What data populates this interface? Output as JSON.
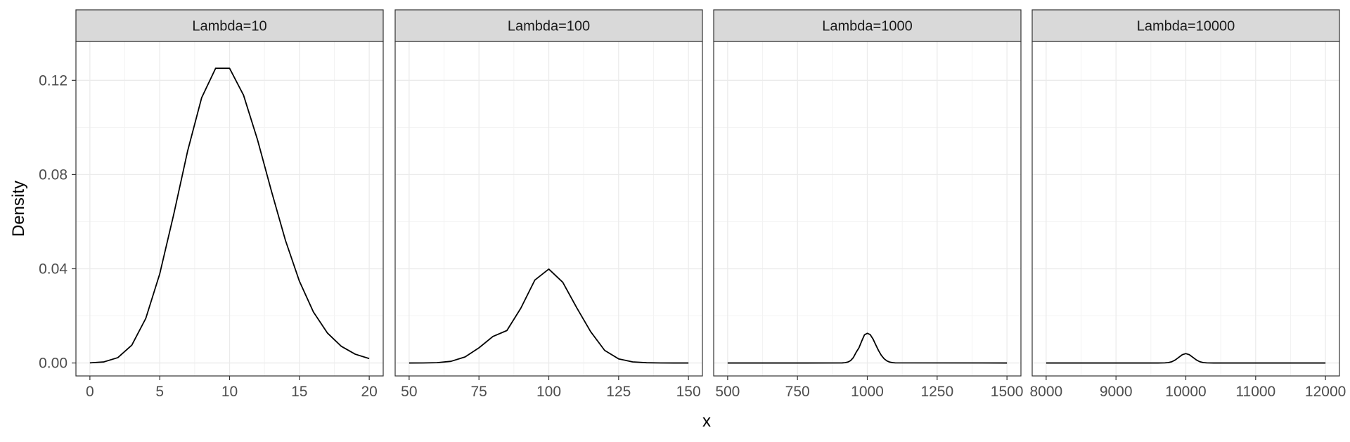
{
  "chart_data": {
    "type": "line",
    "title": "",
    "xlabel": "x",
    "ylabel": "Density",
    "ylim": [
      -0.0055,
      0.1365
    ],
    "y_ticks": [
      0.0,
      0.04,
      0.08,
      0.12
    ],
    "y_tick_labels": [
      "0.00",
      "0.04",
      "0.08",
      "0.12"
    ],
    "grid": true,
    "shared_y": true,
    "panels": [
      {
        "strip": "Lambda=10",
        "lambda": 10,
        "xlim": [
          -1,
          21
        ],
        "x_ticks": [
          0,
          5,
          10,
          15,
          20
        ],
        "x_tick_labels": [
          "0",
          "5",
          "10",
          "15",
          "20"
        ],
        "series": [
          {
            "x": [
              0,
              1,
              2,
              3,
              4,
              5,
              6,
              7,
              8,
              9,
              10,
              11,
              12,
              13,
              14,
              15,
              16,
              17,
              18,
              19,
              20
            ],
            "y": [
              4.54e-05,
              0.000454,
              0.00227,
              0.00757,
              0.01892,
              0.03783,
              0.06306,
              0.09008,
              0.1126,
              0.1251,
              0.1251,
              0.1137,
              0.09478,
              0.07291,
              0.05208,
              0.03472,
              0.0217,
              0.01276,
              0.00709,
              0.00373,
              0.00187
            ]
          }
        ]
      },
      {
        "strip": "Lambda=100",
        "lambda": 100,
        "xlim": [
          45,
          155
        ],
        "x_ticks": [
          50,
          75,
          100,
          125,
          150
        ],
        "x_tick_labels": [
          "50",
          "75",
          "100",
          "125",
          "150"
        ],
        "series": [
          {
            "x": [
              50,
              55,
              60,
              65,
              70,
              75,
              80,
              85,
              90,
              95,
              100,
              105,
              110,
              115,
              120,
              125,
              130,
              135,
              140,
              145,
              150
            ],
            "y": [
              1.6e-06,
              1.79e-05,
              0.0001362,
              0.0007114,
              0.002567,
              0.00643,
              0.01126,
              0.01378,
              0.02329,
              0.03519,
              0.03986,
              0.03427,
              0.02347,
              0.01327,
              0.00535,
              0.00175,
              0.000476,
              0.000117,
              2.53e-05,
              4.7e-06,
              8e-07
            ]
          }
        ]
      },
      {
        "strip": "Lambda=1000",
        "lambda": 1000,
        "xlim": [
          450,
          1550
        ],
        "x_ticks": [
          500,
          750,
          1000,
          1250,
          1500
        ],
        "x_tick_labels": [
          "500",
          "750",
          "1000",
          "1250",
          "1500"
        ],
        "series": [
          {
            "x": [
              500,
              900,
              910,
              920,
              930,
              940,
              950,
              960,
              970,
              980,
              990,
              1000,
              1010,
              1020,
              1030,
              1040,
              1050,
              1060,
              1070,
              1080,
              1090,
              1100,
              1500
            ],
            "y": [
              0,
              9.5e-06,
              3.81e-05,
              0.0001314,
              0.000385,
              0.000992,
              0.002297,
              0.004527,
              0.006422,
              0.009291,
              0.01198,
              0.01261,
              0.01209,
              0.01029,
              0.00779,
              0.00533,
              0.00329,
              0.00182,
              0.00089,
              0.00039,
              0.00015,
              5e-05,
              0
            ]
          }
        ]
      },
      {
        "strip": "Lambda=10000",
        "lambda": 10000,
        "xlim": [
          7800,
          12200
        ],
        "x_ticks": [
          8000,
          9000,
          10000,
          11000,
          12000
        ],
        "x_tick_labels": [
          "8000",
          "9000",
          "10000",
          "11000",
          "12000"
        ],
        "series": [
          {
            "x": [
              8000,
              9600,
              9650,
              9700,
              9750,
              9800,
              9850,
              9900,
              9950,
              10000,
              10050,
              10100,
              10150,
              10200,
              10250,
              10300,
              10350,
              10400,
              12000
            ],
            "y": [
              0,
              1.3e-06,
              8.8e-06,
              4.43e-05,
              0.000175,
              0.000539,
              0.001295,
              0.00242,
              0.003521,
              0.003989,
              0.003521,
              0.00242,
              0.001295,
              0.000539,
              0.000175,
              4.43e-05,
              8.8e-06,
              1.3e-06,
              0
            ]
          }
        ]
      }
    ]
  },
  "colors": {
    "line": "#000000",
    "strip_fill": "#d9d9d9",
    "panel_border": "#333333",
    "grid_major": "#ebebeb",
    "grid_minor": "#f3f3f3",
    "tick_text": "#4d4d4d",
    "strip_text": "#1a1a1a",
    "axis_title": "#000000"
  }
}
